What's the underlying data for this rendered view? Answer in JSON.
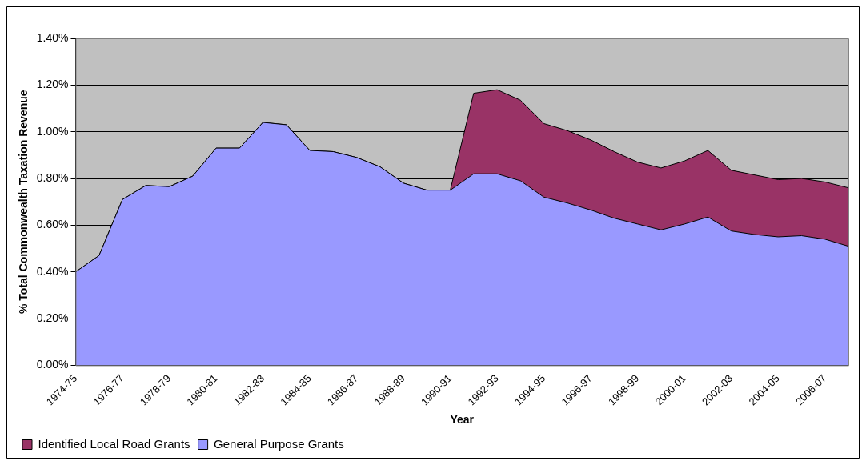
{
  "chart_data": {
    "type": "area",
    "stacked": true,
    "xlabel": "Year",
    "ylabel": "% Total Commonwealth Taxation Revenue",
    "categories": [
      "1974-75",
      null,
      "1976-77",
      null,
      "1978-79",
      null,
      "1980-81",
      null,
      "1982-83",
      null,
      "1984-85",
      null,
      "1986-87",
      null,
      "1988-89",
      null,
      "1990-91",
      null,
      "1992-93",
      null,
      "1994-95",
      null,
      "1996-97",
      null,
      "1998-99",
      null,
      "2000-01",
      null,
      "2002-03",
      null,
      "2004-05",
      null,
      "2006-07",
      null
    ],
    "series": [
      {
        "name": "General Purpose Grants",
        "color": "#9999ff",
        "values": [
          0.4,
          0.47,
          0.71,
          0.77,
          0.765,
          0.81,
          0.93,
          0.93,
          1.04,
          1.03,
          0.92,
          0.915,
          0.89,
          0.85,
          0.78,
          0.75,
          0.75,
          0.82,
          0.82,
          0.79,
          0.72,
          0.695,
          0.665,
          0.63,
          0.605,
          0.58,
          0.605,
          0.635,
          0.575,
          0.56,
          0.55,
          0.555,
          0.54,
          0.51
        ]
      },
      {
        "name": "Identified Local Road Grants",
        "color": "#993366",
        "values": [
          0,
          0,
          0,
          0,
          0,
          0,
          0,
          0,
          0,
          0,
          0,
          0,
          0,
          0,
          0,
          0,
          0,
          0.345,
          0.36,
          0.345,
          0.315,
          0.31,
          0.3,
          0.285,
          0.265,
          0.265,
          0.27,
          0.285,
          0.26,
          0.255,
          0.245,
          0.245,
          0.245,
          0.25
        ]
      }
    ],
    "ylim": [
      0,
      1.4
    ],
    "yticks": [
      {
        "value": 0,
        "label": "0.00%"
      },
      {
        "value": 0.2,
        "label": "0.20%"
      },
      {
        "value": 0.4,
        "label": "0.40%"
      },
      {
        "value": 0.6,
        "label": "0.60%"
      },
      {
        "value": 0.8,
        "label": "0.80%"
      },
      {
        "value": 1.0,
        "label": "1.00%"
      },
      {
        "value": 1.2,
        "label": "1.20%"
      },
      {
        "value": 1.4,
        "label": "1.40%"
      }
    ],
    "grid": "y",
    "legend": "bottom left"
  }
}
